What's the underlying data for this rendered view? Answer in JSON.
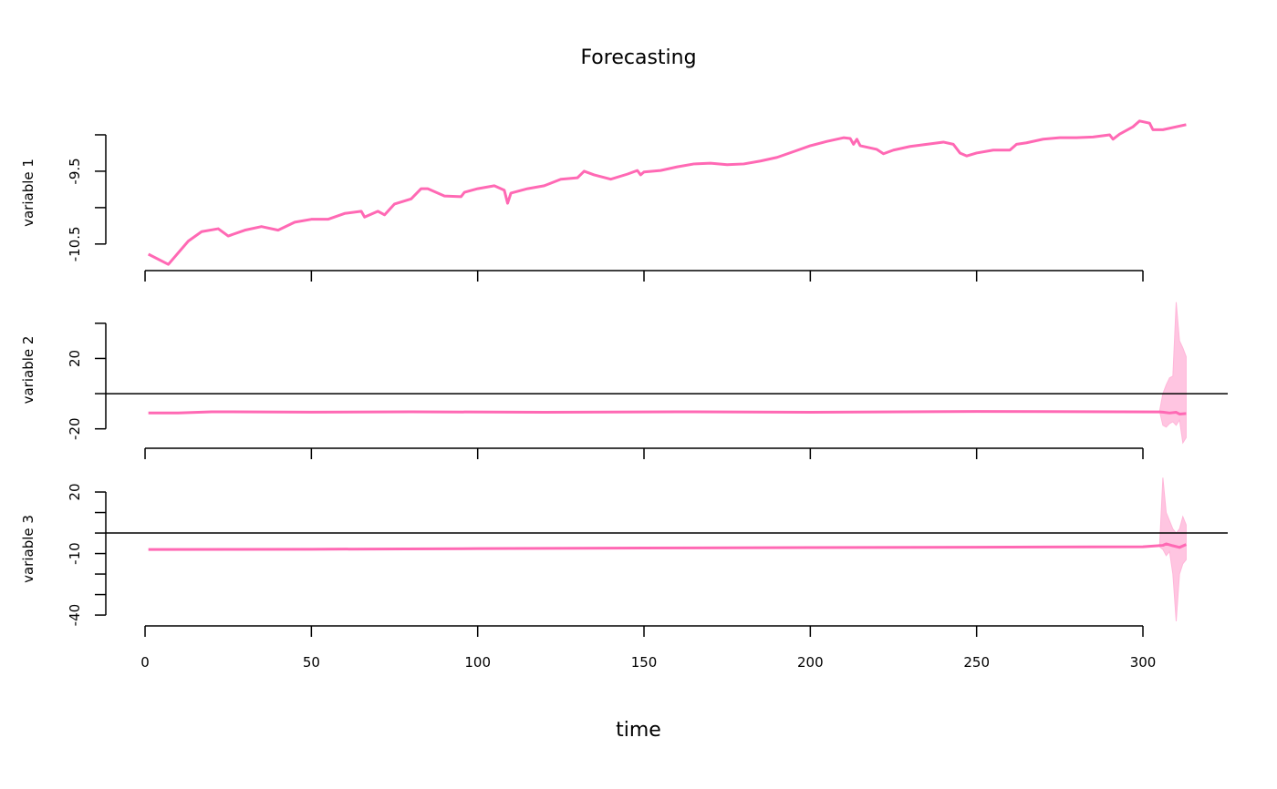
{
  "chart_data": {
    "type": "line",
    "title": "Forecasting",
    "x_label": "time",
    "xlim": [
      -11.8,
      325.5
    ],
    "xticks": [
      0,
      50,
      100,
      150,
      200,
      250,
      300
    ],
    "color": "#ff69b4",
    "band_color": "#ffb6d9",
    "panels": [
      {
        "y_label": "variable 1",
        "ylim": [
          -10.84,
          -8.75
        ],
        "yticks": [
          {
            "value": -10.5,
            "label": "-10.5"
          },
          {
            "value": -10,
            "label": null
          },
          {
            "value": -9.5,
            "label": "-9.5"
          },
          {
            "value": -9,
            "label": null
          }
        ],
        "x": [
          1,
          7,
          13,
          17,
          22,
          25,
          30,
          35,
          40,
          45,
          50,
          55,
          60,
          65,
          66,
          70,
          72,
          75,
          80,
          83,
          85,
          90,
          95,
          96,
          100,
          105,
          108,
          109,
          110,
          115,
          120,
          125,
          130,
          132,
          135,
          140,
          145,
          148,
          149,
          150,
          155,
          160,
          165,
          170,
          175,
          180,
          185,
          190,
          195,
          200,
          205,
          210,
          212,
          213,
          214,
          215,
          220,
          222,
          225,
          230,
          235,
          240,
          243,
          245,
          247,
          250,
          255,
          260,
          262,
          265,
          270,
          275,
          280,
          285,
          290,
          291,
          293,
          297,
          299,
          302,
          303,
          306,
          313
        ],
        "values": [
          -10.64,
          -10.78,
          -10.46,
          -10.33,
          -10.29,
          -10.39,
          -10.31,
          -10.26,
          -10.31,
          -10.2,
          -10.16,
          -10.16,
          -10.08,
          -10.05,
          -10.13,
          -10.05,
          -10.1,
          -9.95,
          -9.88,
          -9.74,
          -9.74,
          -9.84,
          -9.85,
          -9.79,
          -9.74,
          -9.7,
          -9.76,
          -9.94,
          -9.8,
          -9.74,
          -9.7,
          -9.61,
          -9.59,
          -9.5,
          -9.55,
          -9.61,
          -9.54,
          -9.49,
          -9.55,
          -9.51,
          -9.49,
          -9.44,
          -9.4,
          -9.39,
          -9.41,
          -9.4,
          -9.36,
          -9.31,
          -9.23,
          -9.15,
          -9.09,
          -9.04,
          -9.05,
          -9.13,
          -9.06,
          -9.15,
          -9.2,
          -9.26,
          -9.21,
          -9.16,
          -9.13,
          -9.1,
          -9.13,
          -9.25,
          -9.29,
          -9.25,
          -9.21,
          -9.21,
          -9.13,
          -9.11,
          -9.06,
          -9.04,
          -9.04,
          -9.03,
          -9.0,
          -9.06,
          -8.99,
          -8.89,
          -8.81,
          -8.84,
          -8.93,
          -8.93,
          -8.86
        ]
      },
      {
        "y_label": "variable 2",
        "ylim": [
          -30,
          57
        ],
        "yticks": [
          {
            "value": -20,
            "label": "-20"
          },
          {
            "value": 0,
            "label": null
          },
          20,
          {
            "value": 40,
            "label": null
          }
        ],
        "hline": 0,
        "x": [
          1,
          10,
          20,
          50,
          80,
          120,
          160,
          200,
          250,
          305,
          306,
          308,
          310,
          311,
          313
        ],
        "values": [
          -11,
          -11,
          -10.3,
          -10.5,
          -10.3,
          -10.6,
          -10.3,
          -10.6,
          -10.1,
          -10.4,
          -10.5,
          -11,
          -10.6,
          -11.6,
          -11.3
        ],
        "band": {
          "x": [
            305,
            306,
            307,
            308,
            309,
            310,
            311,
            312,
            313
          ],
          "upper": [
            -10,
            0,
            5,
            9,
            10,
            52,
            30,
            26,
            21
          ],
          "lower": [
            -10,
            -18,
            -19,
            -17,
            -16,
            -18,
            -15,
            -28,
            -25
          ]
        }
      },
      {
        "y_label": "variable 3",
        "ylim": [
          -44.4,
          28.9
        ],
        "yticks": [
          {
            "value": -40,
            "label": "-40"
          },
          {
            "value": -30,
            "label": null
          },
          {
            "value": -20,
            "label": null
          },
          {
            "value": -10,
            "label": "-10"
          },
          {
            "value": 0,
            "label": null
          },
          {
            "value": 10,
            "label": null
          },
          20
        ],
        "hline": 0,
        "x": [
          1,
          50,
          100,
          150,
          200,
          250,
          300,
          306,
          307,
          309,
          311,
          313
        ],
        "values": [
          -8,
          -7.9,
          -7.6,
          -7.3,
          -7.1,
          -6.9,
          -6.7,
          -6,
          -5.3,
          -6.2,
          -7,
          -5.6
        ],
        "band": {
          "x": [
            305,
            306,
            307,
            308,
            309,
            310,
            311,
            312,
            313
          ],
          "upper": [
            -6.7,
            27,
            10,
            6,
            2,
            0,
            2,
            8,
            4
          ],
          "lower": [
            -6.7,
            -8,
            -11,
            -9,
            -20,
            -43,
            -20,
            -15,
            -13
          ]
        }
      }
    ]
  }
}
